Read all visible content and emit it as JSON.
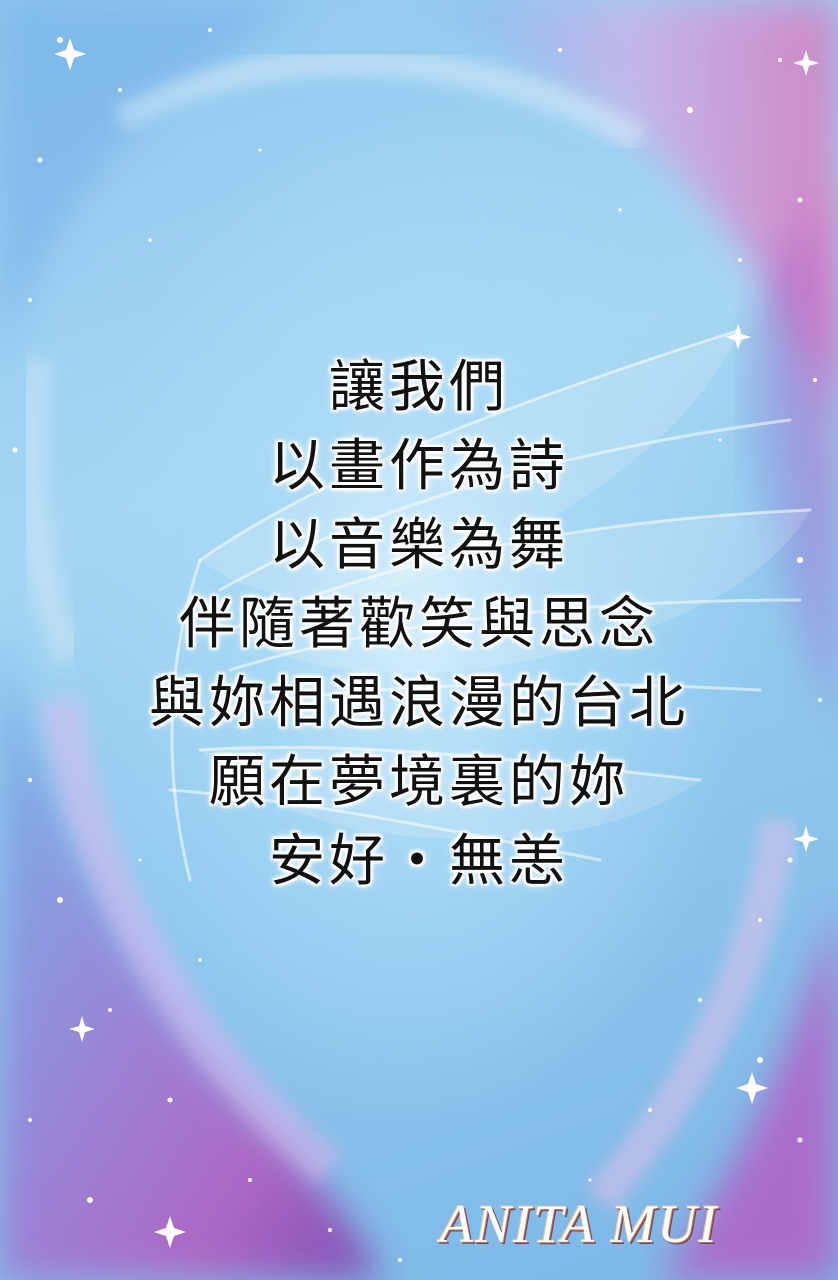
{
  "poem": {
    "lines": [
      "讓我們",
      "以畫作為詩",
      "以音樂為舞",
      "伴隨著歡笑與思念",
      "與妳相遇浪漫的台北",
      "願在夢境裏的妳",
      "安好‧無恙"
    ]
  },
  "signature": "ANITA MUI",
  "colors": {
    "sky_blue": "#a7d6f3",
    "purple": "#8a4fb8",
    "pink": "#e07ab8",
    "text": "#111111"
  },
  "decorations": {
    "background": "galaxy-swirl-artwork",
    "wing": "angel-wing-icon",
    "sparkles": "star-sparkle-icon"
  }
}
